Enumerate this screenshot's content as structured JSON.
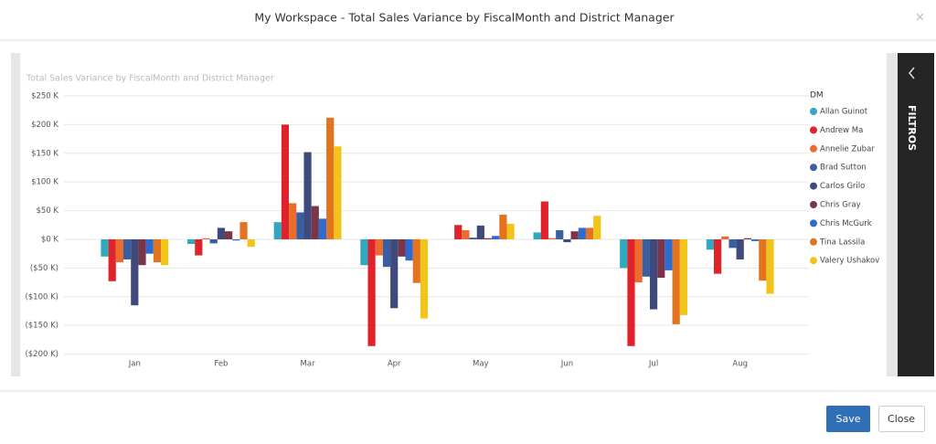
{
  "dialog": {
    "title": "My Workspace - Total Sales Variance by FiscalMonth and District Manager",
    "filters": "FILTROS",
    "save": "Save",
    "close": "Close"
  },
  "chart_data": {
    "type": "bar",
    "title": "Total Sales Variance by FiscalMonth and District Manager",
    "legend_title": "DM",
    "categories": [
      "Jan",
      "Feb",
      "Mar",
      "Apr",
      "May",
      "Jun",
      "Jul",
      "Aug"
    ],
    "ylim": [
      -215,
      260
    ],
    "yticks": [
      {
        "value": 250,
        "label": "$250 K"
      },
      {
        "value": 200,
        "label": "$200 K"
      },
      {
        "value": 150,
        "label": "$150 K"
      },
      {
        "value": 100,
        "label": "$100 K"
      },
      {
        "value": 50,
        "label": "$50 K"
      },
      {
        "value": 0,
        "label": "$0 K"
      },
      {
        "value": -50,
        "label": "($50 K)"
      },
      {
        "value": -100,
        "label": "($100 K)"
      },
      {
        "value": -150,
        "label": "($150 K)"
      },
      {
        "value": -200,
        "label": "($200 K)"
      }
    ],
    "grid": true,
    "series": [
      {
        "name": "Allan Guinot",
        "color": "#2fa8c0",
        "values": [
          -30,
          -8,
          30,
          -45,
          0,
          12,
          -50,
          -18
        ]
      },
      {
        "name": "Andrew Ma",
        "color": "#e0232b",
        "values": [
          -73,
          -28,
          200,
          -186,
          25,
          66,
          -186,
          -60
        ]
      },
      {
        "name": "Annelie Zubar",
        "color": "#ec6b2d",
        "values": [
          -40,
          2,
          63,
          -28,
          16,
          2,
          -75,
          5
        ]
      },
      {
        "name": "Brad Sutton",
        "color": "#3a5fa0",
        "values": [
          -35,
          -7,
          47,
          -48,
          3,
          16,
          -65,
          -15
        ]
      },
      {
        "name": "Carlos Grilo",
        "color": "#3f4a7c",
        "values": [
          -115,
          20,
          152,
          -120,
          24,
          -5,
          -122,
          -35
        ]
      },
      {
        "name": "Chris Gray",
        "color": "#7a3648",
        "values": [
          -45,
          14,
          58,
          -30,
          2,
          14,
          -67,
          2
        ]
      },
      {
        "name": "Chris McGurk",
        "color": "#2d6bd1",
        "values": [
          -25,
          -2,
          36,
          -37,
          6,
          20,
          -54,
          -3
        ]
      },
      {
        "name": "Tina Lassila",
        "color": "#e2731f",
        "values": [
          -40,
          30,
          212,
          -76,
          43,
          20,
          -148,
          -72
        ]
      },
      {
        "name": "Valery Ushakov",
        "color": "#f2c41b",
        "values": [
          -45,
          -13,
          162,
          -138,
          27,
          41,
          -132,
          -95
        ]
      }
    ]
  }
}
